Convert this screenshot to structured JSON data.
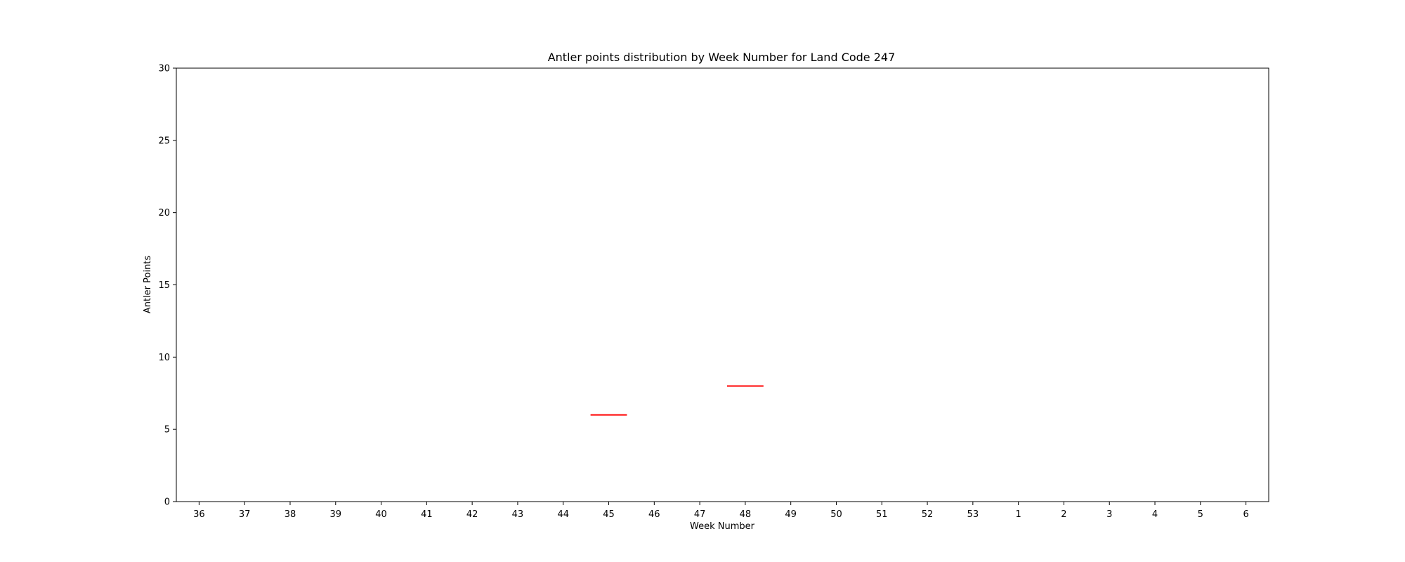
{
  "chart_data": {
    "type": "box",
    "title": "Antler points distribution by Week Number for Land Code 247",
    "xlabel": "Week Number",
    "ylabel": "Antler Points",
    "categories": [
      "36",
      "37",
      "38",
      "39",
      "40",
      "41",
      "42",
      "43",
      "44",
      "45",
      "46",
      "47",
      "48",
      "49",
      "50",
      "51",
      "52",
      "53",
      "1",
      "2",
      "3",
      "4",
      "5",
      "6"
    ],
    "ylim": [
      0,
      30
    ],
    "yticks": [
      0,
      5,
      10,
      15,
      20,
      25,
      30
    ],
    "grid": false,
    "median_color": "#ff0000",
    "series": [
      {
        "values": [
          null,
          null,
          null,
          null,
          null,
          null,
          null,
          null,
          null,
          6,
          null,
          null,
          8,
          null,
          null,
          null,
          null,
          null,
          null,
          null,
          null,
          null,
          null,
          null
        ]
      }
    ]
  }
}
